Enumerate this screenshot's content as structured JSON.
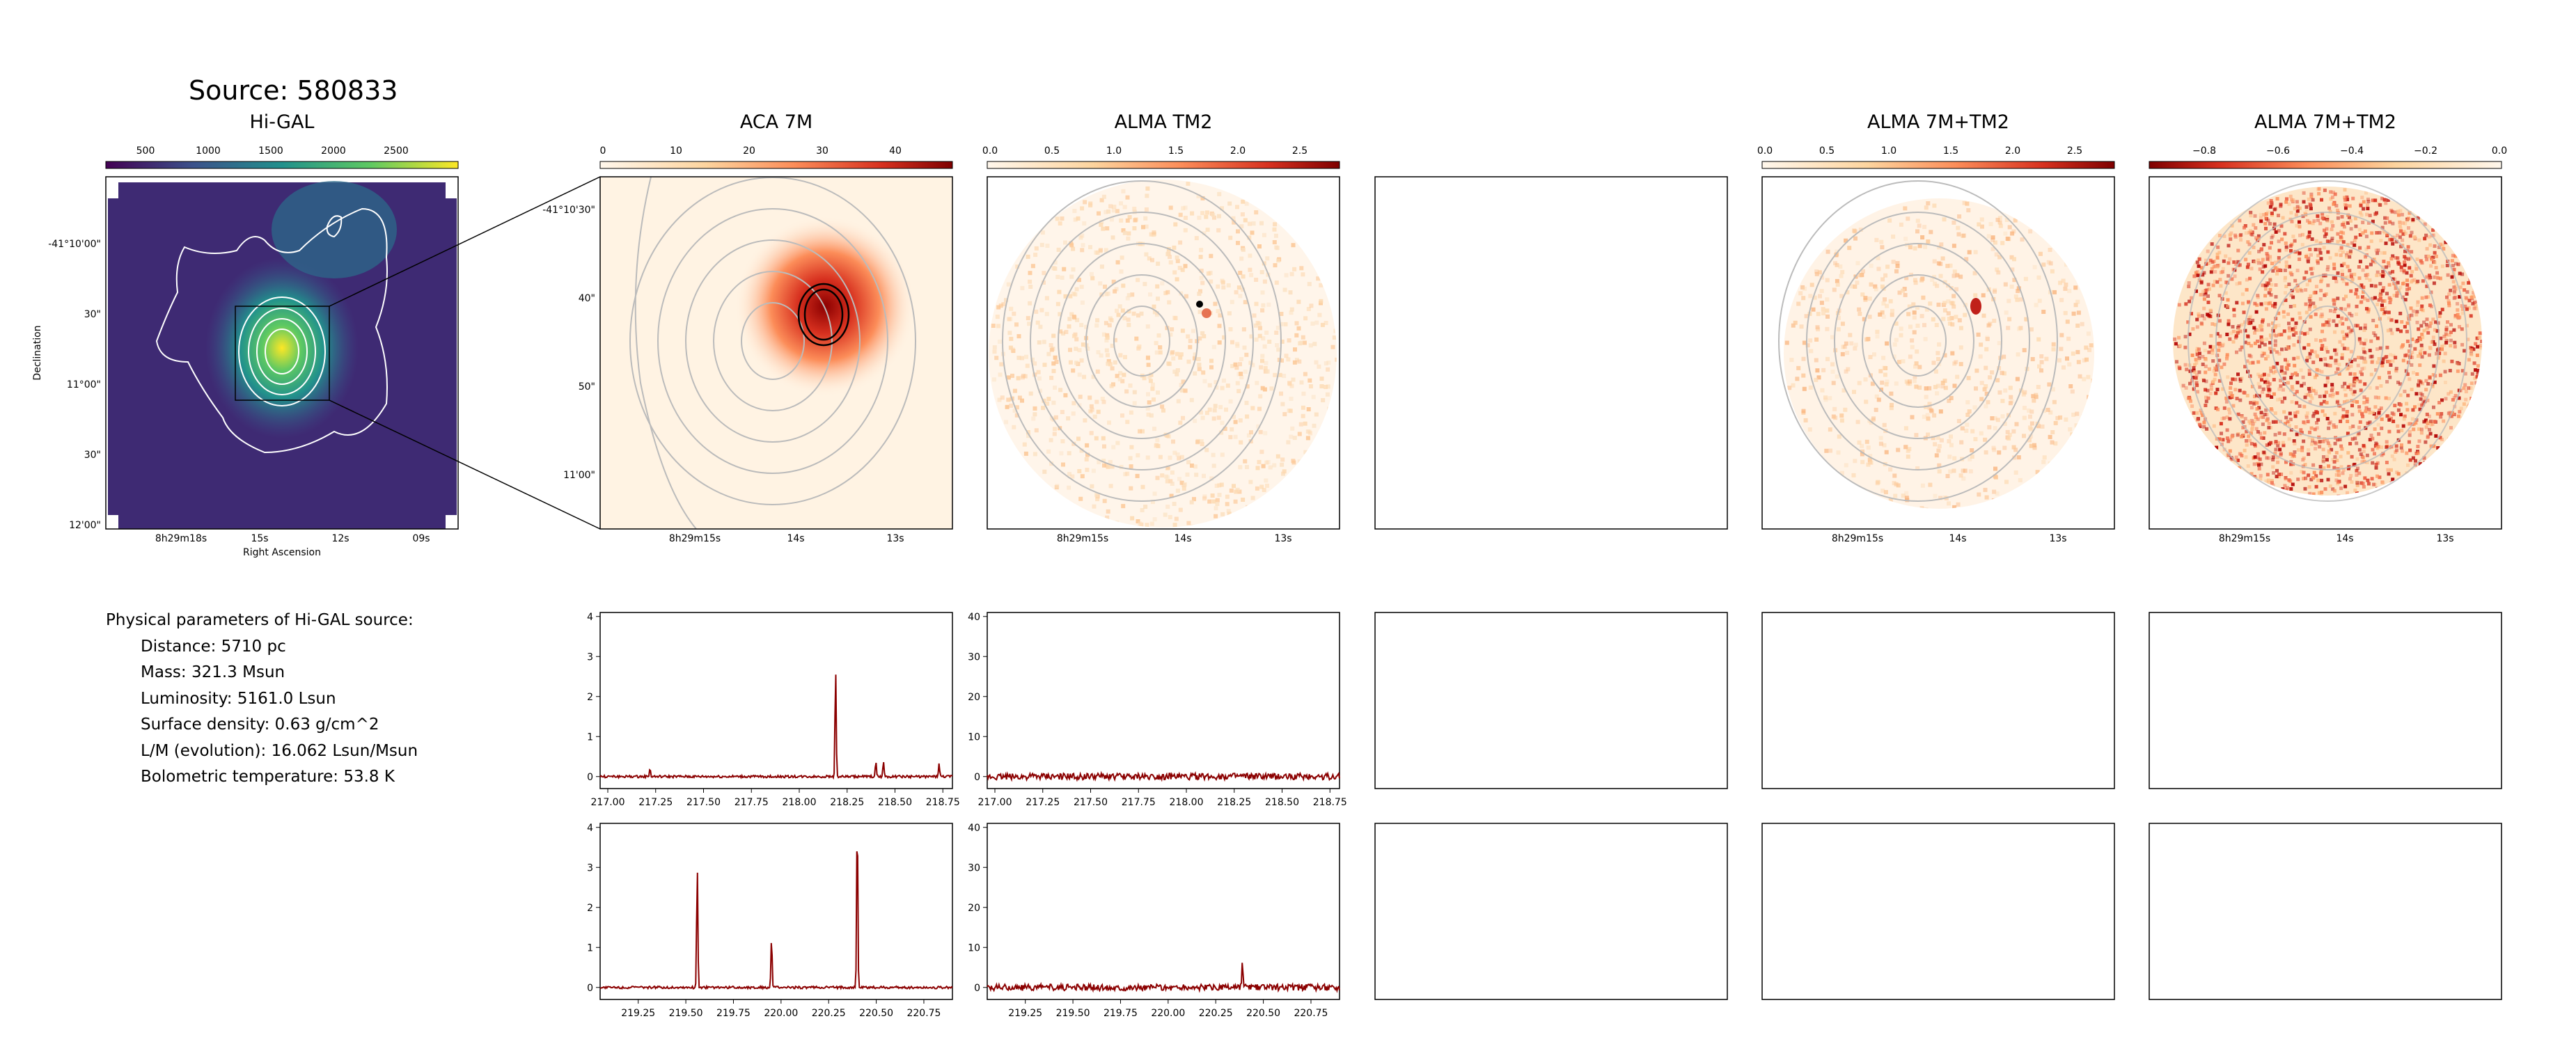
{
  "source_title": "Source: 580833",
  "panels": [
    {
      "id": "higal",
      "title": "Hi-GAL",
      "colorbar_ticks": [
        "500",
        "1000",
        "1500",
        "2000",
        "2500"
      ],
      "ylabels": [
        "-41°10'00\"",
        "30\"",
        "11°00\"",
        "30\"",
        "12'00\""
      ],
      "xlabels": [
        "8h29m18s",
        "15s",
        "12s",
        "09s"
      ],
      "xlabel": "Right Ascension",
      "ylabel": "Declination",
      "colormap": "viridis"
    },
    {
      "id": "aca7m",
      "title": "ACA 7M",
      "colorbar_ticks": [
        "0",
        "10",
        "20",
        "30",
        "40"
      ],
      "ylabels": [
        "-41°10'30\"",
        "40\"",
        "50\"",
        "11'00\""
      ],
      "xlabels": [
        "8h29m15s",
        "14s",
        "13s"
      ],
      "colormap": "OrRd"
    },
    {
      "id": "tm2",
      "title": "ALMA TM2",
      "colorbar_ticks": [
        "0.0",
        "0.5",
        "1.0",
        "1.5",
        "2.0",
        "2.5"
      ],
      "xlabels": [
        "8h29m15s",
        "14s",
        "13s"
      ],
      "colormap": "OrRd"
    },
    {
      "id": "empty",
      "title": ""
    },
    {
      "id": "combined",
      "title": "ALMA 7M+TM2",
      "colorbar_ticks": [
        "0.0",
        "0.5",
        "1.0",
        "1.5",
        "2.0",
        "2.5"
      ],
      "xlabels": [
        "8h29m15s",
        "14s",
        "13s"
      ],
      "colormap": "OrRd"
    },
    {
      "id": "residual",
      "title": "ALMA 7M+TM2",
      "colorbar_ticks": [
        "−0.8",
        "−0.6",
        "−0.4",
        "−0.2",
        "0.0"
      ],
      "xlabels": [
        "8h29m15s",
        "14s",
        "13s"
      ],
      "colormap": "OrRd"
    }
  ],
  "physical_parameters": {
    "heading": "Physical parameters of Hi-GAL source:",
    "lines": [
      "Distance: 5710 pc",
      "Mass: 321.3 Msun",
      "Luminosity: 5161.0 Lsun",
      "Surface density: 0.63 g/cm^2",
      "L/M (evolution): 16.062 Lsun/Msun",
      "Bolometric temperature: 53.8 K"
    ]
  },
  "chart_data": [
    {
      "type": "line",
      "panel": "spectrum-aca7m-spw1",
      "series_color": "#8b0000",
      "xlim": [
        216.96,
        218.8
      ],
      "ylim": [
        -0.3,
        4.1
      ],
      "xticks": [
        "217.00",
        "217.25",
        "217.50",
        "217.75",
        "218.00",
        "218.25",
        "218.50",
        "218.75"
      ],
      "yticks": [
        "0",
        "1",
        "2",
        "3",
        "4"
      ],
      "noise": 0.03,
      "lines": [
        [
          217.22,
          0.2
        ],
        [
          218.19,
          2.7
        ],
        [
          218.4,
          0.35
        ],
        [
          218.44,
          0.38
        ],
        [
          218.73,
          0.32
        ]
      ]
    },
    {
      "type": "line",
      "panel": "spectrum-tm2-spw1",
      "series_color": "#8b0000",
      "xlim": [
        216.96,
        218.8
      ],
      "ylim": [
        -3,
        41
      ],
      "xticks": [
        "217.00",
        "217.25",
        "217.50",
        "217.75",
        "218.00",
        "218.25",
        "218.50",
        "218.75"
      ],
      "yticks": [
        "0",
        "10",
        "20",
        "30",
        "40"
      ],
      "noise": 0.8,
      "lines": []
    },
    {
      "type": "line",
      "panel": "spectrum-aca7m-spw2",
      "series_color": "#8b0000",
      "xlim": [
        219.05,
        220.9
      ],
      "ylim": [
        -0.3,
        4.1
      ],
      "xticks": [
        "219.25",
        "219.50",
        "219.75",
        "220.00",
        "220.25",
        "220.50",
        "220.75"
      ],
      "yticks": [
        "0",
        "1",
        "2",
        "3",
        "4"
      ],
      "noise": 0.03,
      "lines": [
        [
          219.56,
          3.0
        ],
        [
          219.95,
          1.25
        ],
        [
          220.4,
          4.3
        ]
      ]
    },
    {
      "type": "line",
      "panel": "spectrum-tm2-spw2",
      "series_color": "#8b0000",
      "xlim": [
        219.05,
        220.9
      ],
      "ylim": [
        -3,
        41
      ],
      "xticks": [
        "219.25",
        "219.50",
        "219.75",
        "220.00",
        "220.25",
        "220.50",
        "220.75"
      ],
      "yticks": [
        "0",
        "10",
        "20",
        "30",
        "40"
      ],
      "noise": 0.8,
      "lines": [
        [
          220.39,
          6.0
        ]
      ]
    }
  ]
}
